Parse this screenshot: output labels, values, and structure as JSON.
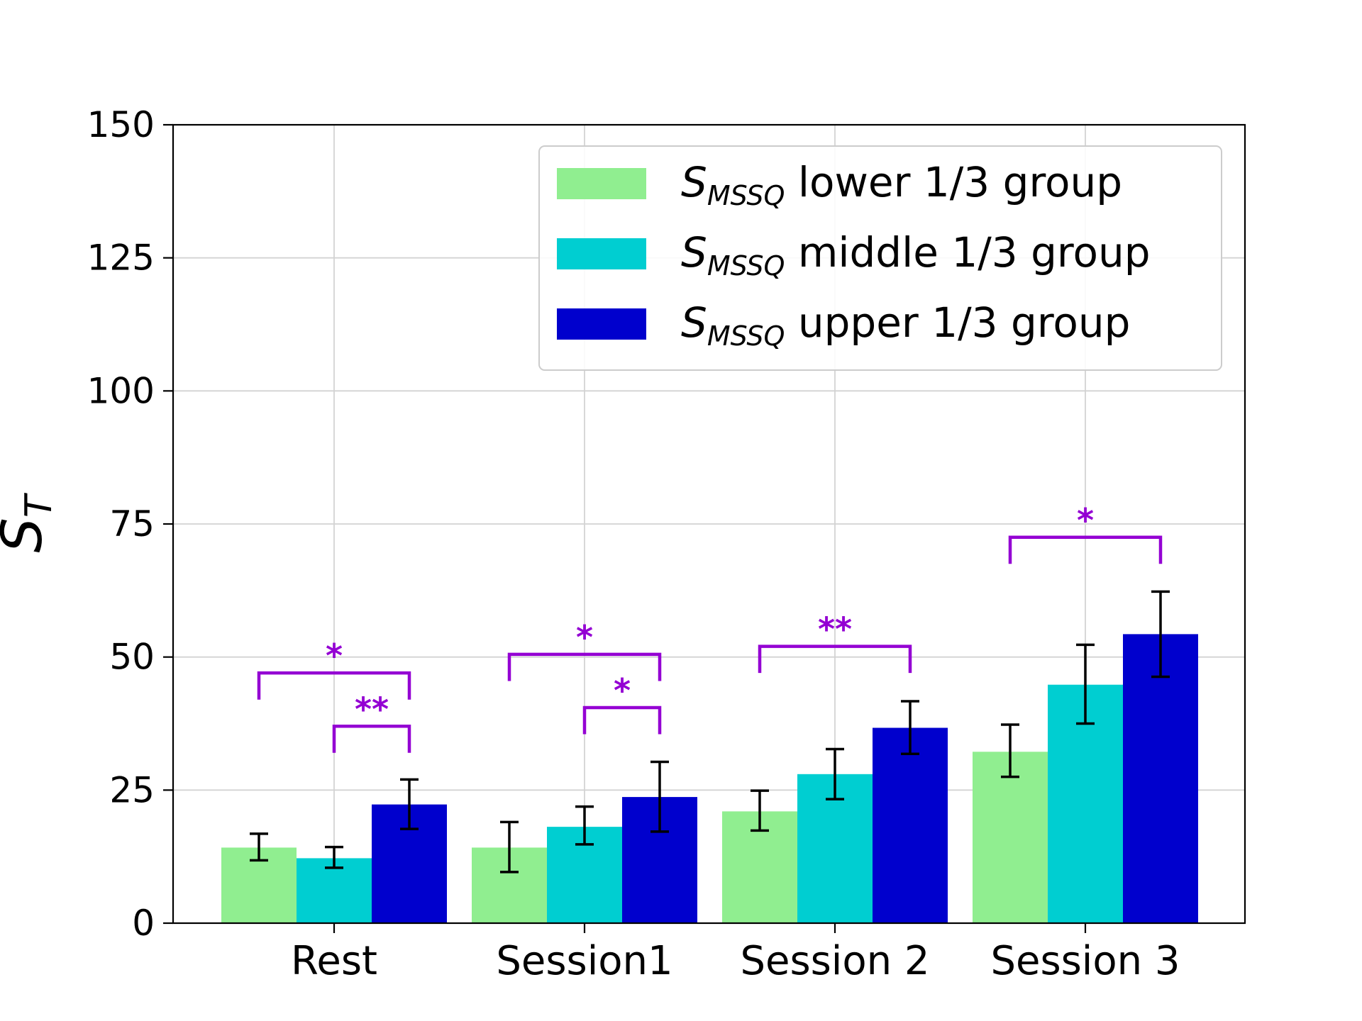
{
  "chart_data": {
    "type": "bar",
    "categories": [
      "Rest",
      "Session1",
      "Session 2",
      "Session 3"
    ],
    "series": [
      {
        "name_base": "S",
        "name_sub": "MSSQ",
        "name_rest": " lower 1/3 group",
        "color": "#90ee90",
        "values": [
          14.2,
          14.2,
          21.0,
          32.2
        ],
        "err_low": [
          11.8,
          9.6,
          17.4,
          27.5
        ],
        "err_high": [
          16.8,
          19.0,
          24.9,
          37.3
        ]
      },
      {
        "name_base": "S",
        "name_sub": "MSSQ",
        "name_rest": " middle 1/3 group",
        "color": "#00ced1",
        "values": [
          12.2,
          18.1,
          28.0,
          44.8
        ],
        "err_low": [
          10.4,
          14.8,
          23.3,
          37.5
        ],
        "err_high": [
          14.3,
          21.9,
          32.7,
          52.3
        ]
      },
      {
        "name_base": "S",
        "name_sub": "MSSQ",
        "name_rest": " upper 1/3 group",
        "color": "#0000cd",
        "values": [
          22.3,
          23.7,
          36.7,
          54.3
        ],
        "err_low": [
          17.7,
          17.2,
          31.8,
          46.3
        ],
        "err_high": [
          27.0,
          30.3,
          41.7,
          62.3
        ]
      }
    ],
    "ylabel_base": "S",
    "ylabel_sub": "T",
    "ylim": [
      0,
      150
    ],
    "yticks": [
      "0",
      "25",
      "50",
      "75",
      "100",
      "125",
      "150"
    ],
    "grid": true,
    "legend_position": "top-right",
    "significance": [
      {
        "category": 0,
        "from": 0,
        "to": 2,
        "level": 47,
        "drop": 42,
        "label": "*"
      },
      {
        "category": 0,
        "from": 1,
        "to": 2,
        "level": 37,
        "drop": 32,
        "label": "**"
      },
      {
        "category": 1,
        "from": 0,
        "to": 2,
        "level": 50.5,
        "drop": 45.5,
        "label": "*"
      },
      {
        "category": 1,
        "from": 1,
        "to": 2,
        "level": 40.5,
        "drop": 35.5,
        "label": "*"
      },
      {
        "category": 2,
        "from": 0,
        "to": 2,
        "level": 52,
        "drop": 47,
        "label": "**"
      },
      {
        "category": 3,
        "from": 0,
        "to": 2,
        "level": 72.5,
        "drop": 67.5,
        "label": "*"
      }
    ],
    "colors": {
      "axis": "#000000",
      "grid": "#d3d3d3",
      "significance": "#9400d3",
      "error": "#000000"
    }
  }
}
